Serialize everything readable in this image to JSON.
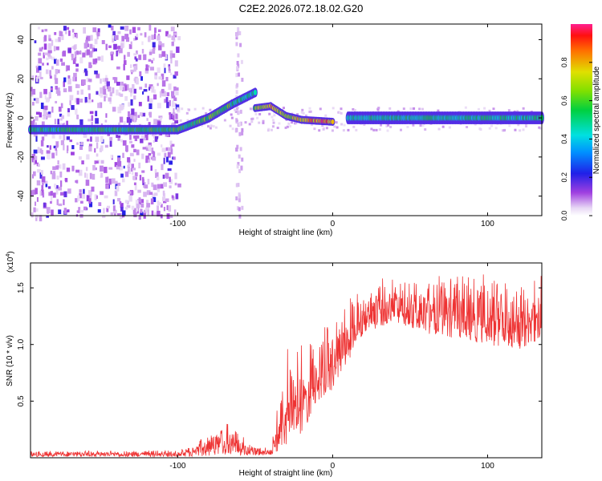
{
  "title": "C2E2.2026.072.18.02.G20",
  "chart_data": [
    {
      "type": "heatmap",
      "xlabel": "Height of straight line (km)",
      "ylabel": "Frequency (Hz)",
      "xlim": [
        -195,
        135
      ],
      "ylim": [
        -50,
        48
      ],
      "xticks": [
        -100,
        0,
        100
      ],
      "yticks": [
        -40,
        -20,
        0,
        20,
        40
      ],
      "colorbar": {
        "label": "Normalized spectral amplitude",
        "range": [
          0,
          1
        ],
        "ticks": [
          0.0,
          0.2,
          0.4,
          0.6,
          0.8
        ],
        "tick_labels": [
          "0.0",
          "0.2",
          "0.4",
          "0.6",
          "0.8"
        ]
      },
      "ridge": [
        {
          "x": -195,
          "y": -6,
          "amp": 0.5
        },
        {
          "x": -100,
          "y": -6,
          "amp": 0.55
        },
        {
          "x": -80,
          "y": 0,
          "amp": 0.6
        },
        {
          "x": -65,
          "y": 7,
          "amp": 0.55
        },
        {
          "x": -50,
          "y": 13,
          "amp": 0.45
        },
        {
          "x": -50,
          "y": 5,
          "amp": 0.6
        },
        {
          "x": -40,
          "y": 6,
          "amp": 0.85
        },
        {
          "x": -30,
          "y": 1,
          "amp": 0.6
        },
        {
          "x": -20,
          "y": -1,
          "amp": 0.8
        },
        {
          "x": 0,
          "y": -2,
          "amp": 0.9
        },
        {
          "x": 10,
          "y": 0,
          "amp": 0.5
        },
        {
          "x": 135,
          "y": 0,
          "amp": 0.5
        }
      ]
    },
    {
      "type": "line",
      "xlabel": "Height of straight line (km)",
      "ylabel": "SNR (10 * v/v)",
      "y_multiplier_base": "(x10",
      "y_multiplier_exp": "4",
      "y_multiplier_close": ")",
      "xlim": [
        -195,
        135
      ],
      "ylim": [
        0,
        1.72
      ],
      "xticks": [
        -100,
        0,
        100
      ],
      "yticks": [
        0.5,
        1.0,
        1.5
      ],
      "ytick_labels": [
        "0.5",
        "1.0",
        "1.5"
      ],
      "series": [
        {
          "name": "SNR",
          "color": "#ee3333",
          "envelope": [
            {
              "x": -195,
              "lo": 0.01,
              "hi": 0.06
            },
            {
              "x": -100,
              "lo": 0.01,
              "hi": 0.07
            },
            {
              "x": -90,
              "lo": 0.01,
              "hi": 0.12
            },
            {
              "x": -75,
              "lo": 0.02,
              "hi": 0.28
            },
            {
              "x": -65,
              "lo": 0.02,
              "hi": 0.32
            },
            {
              "x": -55,
              "lo": 0.02,
              "hi": 0.15
            },
            {
              "x": -40,
              "lo": 0.02,
              "hi": 0.08
            },
            {
              "x": -35,
              "lo": 0.05,
              "hi": 0.55
            },
            {
              "x": -28,
              "lo": 0.1,
              "hi": 1.1
            },
            {
              "x": -20,
              "lo": 0.2,
              "hi": 1.05
            },
            {
              "x": -10,
              "lo": 0.5,
              "hi": 1.2
            },
            {
              "x": 0,
              "lo": 0.6,
              "hi": 1.25
            },
            {
              "x": 10,
              "lo": 0.85,
              "hi": 1.4
            },
            {
              "x": 20,
              "lo": 1.1,
              "hi": 1.55
            },
            {
              "x": 40,
              "lo": 1.2,
              "hi": 1.62
            },
            {
              "x": 60,
              "lo": 1.1,
              "hi": 1.62
            },
            {
              "x": 80,
              "lo": 1.05,
              "hi": 1.62
            },
            {
              "x": 100,
              "lo": 1.0,
              "hi": 1.64
            },
            {
              "x": 120,
              "lo": 0.95,
              "hi": 1.64
            },
            {
              "x": 135,
              "lo": 1.05,
              "hi": 1.62
            }
          ]
        }
      ]
    }
  ]
}
